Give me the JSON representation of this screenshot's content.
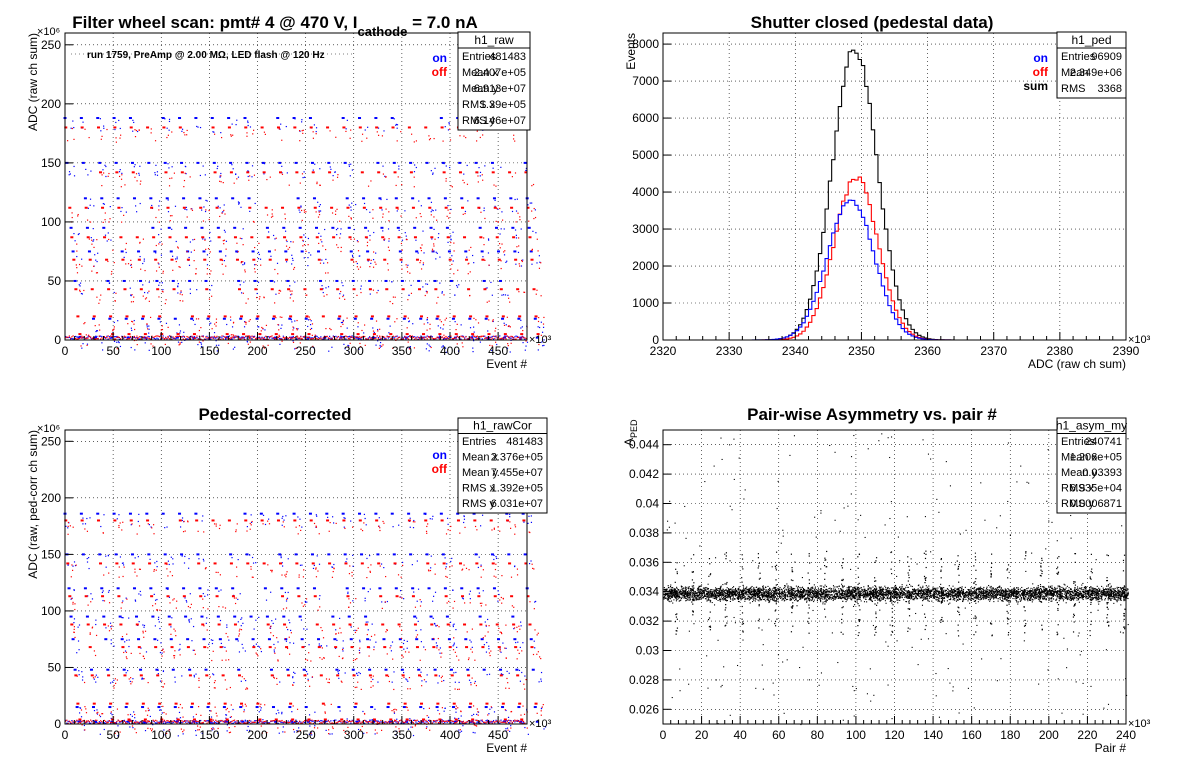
{
  "chart_data": [
    {
      "type": "scatter",
      "title": "Filter wheel scan: pmt#   4 @   470 V, I",
      "title_sub": "cathode",
      "title_tail": " = 7.0 nA",
      "annotation": "run 1759, PreAmp @ 2.00 MΩ, LED flash @  120 Hz",
      "xlabel": "Event #",
      "ylabel": "ADC (raw ch sum)",
      "xlim": [
        0,
        480
      ],
      "ylim": [
        0,
        260
      ],
      "x_exp": "×10³",
      "y_exp": "×10⁶",
      "xticks": [
        0,
        50,
        100,
        150,
        200,
        250,
        300,
        350,
        400,
        450
      ],
      "yticks": [
        0,
        50,
        100,
        150,
        200,
        250
      ],
      "grid": true,
      "legend": [
        {
          "name": "on",
          "color": "#0000ff"
        },
        {
          "name": "off",
          "color": "#ff0000"
        }
      ],
      "stats": {
        "name": "h1_raw",
        "rows": [
          [
            "Entries",
            "481483"
          ],
          [
            "Mean x",
            "2.407e+05"
          ],
          [
            "Mean y",
            "6.913e+07"
          ],
          [
            "RMS x",
            "1.39e+05"
          ],
          [
            "RMS y",
            "6.146e+07"
          ]
        ]
      },
      "bands": {
        "on": [
          188,
          150,
          120,
          95,
          75,
          50,
          18,
          2
        ],
        "off": [
          180,
          142,
          112,
          87,
          68,
          43,
          20,
          5
        ]
      },
      "period": 17,
      "x_max_data": 478
    },
    {
      "type": "line",
      "title": "Shutter closed (pedestal data)",
      "xlabel": "ADC (raw ch sum)",
      "ylabel": "Events",
      "xlim": [
        2320,
        2390
      ],
      "ylim": [
        0,
        8300
      ],
      "x_exp": "×10³",
      "xticks": [
        2320,
        2330,
        2340,
        2350,
        2360,
        2370,
        2380,
        2390
      ],
      "yticks": [
        0,
        1000,
        2000,
        3000,
        4000,
        5000,
        6000,
        7000,
        8000
      ],
      "grid": true,
      "legend": [
        {
          "name": "on",
          "color": "#0000ff"
        },
        {
          "name": "off",
          "color": "#ff0000"
        },
        {
          "name": "sum",
          "color": "#000000"
        }
      ],
      "stats": {
        "name": "h1_ped",
        "rows": [
          [
            "Entries",
            "96909"
          ],
          [
            "Mean",
            "2.349e+06"
          ],
          [
            "RMS",
            "3368"
          ]
        ]
      },
      "series": [
        {
          "name": "sum",
          "color": "#000000",
          "mean": 2349,
          "sigma": 3.4,
          "peak": 7850
        },
        {
          "name": "off",
          "color": "#ff0000",
          "mean": 2349.2,
          "sigma": 3.3,
          "peak": 4400
        },
        {
          "name": "on",
          "color": "#0000ff",
          "mean": 2348.4,
          "sigma": 3.5,
          "peak": 3820
        }
      ]
    },
    {
      "type": "scatter",
      "title": "Pedestal-corrected",
      "xlabel": "Event #",
      "ylabel": "ADC (raw, ped-corr ch sum)",
      "xlim": [
        0,
        480
      ],
      "ylim": [
        0,
        260
      ],
      "x_exp": "×10³",
      "y_exp": "×10⁶",
      "xticks": [
        0,
        50,
        100,
        150,
        200,
        250,
        300,
        350,
        400,
        450
      ],
      "yticks": [
        0,
        50,
        100,
        150,
        200,
        250
      ],
      "grid": true,
      "legend": [
        {
          "name": "on",
          "color": "#0000ff"
        },
        {
          "name": "off",
          "color": "#ff0000"
        }
      ],
      "stats": {
        "name": "h1_rawCor",
        "rows": [
          [
            "Entries",
            "481483"
          ],
          [
            "Mean x",
            "2.376e+05"
          ],
          [
            "Mean y",
            "7.455e+07"
          ],
          [
            "RMS x",
            "1.392e+05"
          ],
          [
            "RMS y",
            "6.031e+07"
          ]
        ]
      },
      "bands": {
        "on": [
          186,
          150,
          120,
          95,
          75,
          48,
          15,
          2
        ],
        "off": [
          180,
          142,
          113,
          88,
          68,
          43,
          18,
          4
        ]
      },
      "period": 17,
      "x_max_data": 478
    },
    {
      "type": "scatter",
      "title": "Pair-wise Asymmetry vs. pair #",
      "xlabel": "Pair #",
      "ylabel": "A_PED",
      "xlim": [
        0,
        240
      ],
      "ylim": [
        0.025,
        0.045
      ],
      "x_exp": "×10³",
      "xticks": [
        0,
        20,
        40,
        60,
        80,
        100,
        120,
        140,
        160,
        180,
        200,
        220,
        240
      ],
      "yticks": [
        0.026,
        0.028,
        0.03,
        0.032,
        0.034,
        0.036,
        0.038,
        0.04,
        0.042,
        0.044
      ],
      "grid": true,
      "stats": {
        "name": "h1_asym_my",
        "rows": [
          [
            "Entries",
            "240741"
          ],
          [
            "Mean x",
            "1.206e+05"
          ],
          [
            "Mean y",
            "0.03393"
          ],
          [
            "RMS x",
            "6.935e+04"
          ],
          [
            "RMS y",
            "0.0006871"
          ]
        ]
      },
      "band_center": 0.0339,
      "band_halfwidth": 0.0006,
      "spike_period": 8.6,
      "x_max_data": 241
    }
  ]
}
